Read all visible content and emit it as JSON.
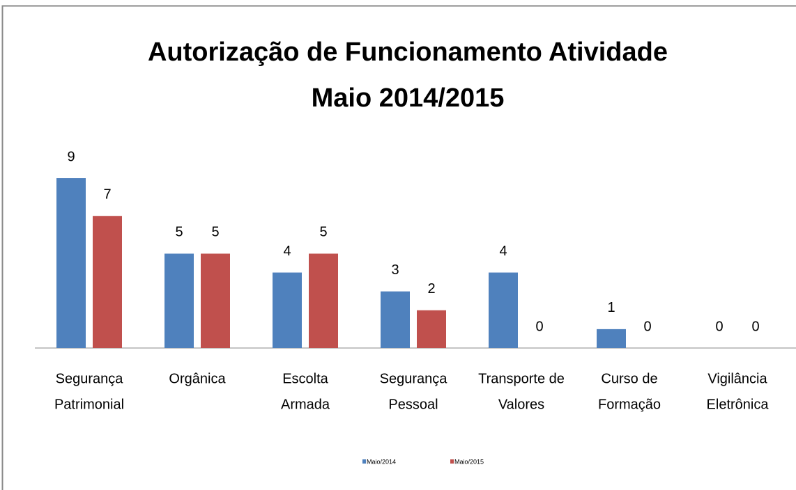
{
  "chart_data": {
    "type": "bar",
    "title": [
      "Autorização de Funcionamento Atividade",
      "Maio 2014/2015"
    ],
    "categories": [
      [
        "Segurança",
        "Patrimonial"
      ],
      [
        "Orgânica"
      ],
      [
        "Escolta",
        "Armada"
      ],
      [
        "Segurança",
        "Pessoal"
      ],
      [
        "Transporte de",
        "Valores"
      ],
      [
        "Curso de",
        "Formação"
      ],
      [
        "Vigilância",
        "Eletrônica"
      ]
    ],
    "series": [
      {
        "name": "Maio/2014",
        "color": "#4f81bd",
        "values": [
          9,
          5,
          4,
          3,
          4,
          1,
          0
        ]
      },
      {
        "name": "Maio/2015",
        "color": "#c0504d",
        "values": [
          7,
          5,
          5,
          2,
          0,
          0,
          0
        ]
      }
    ]
  }
}
